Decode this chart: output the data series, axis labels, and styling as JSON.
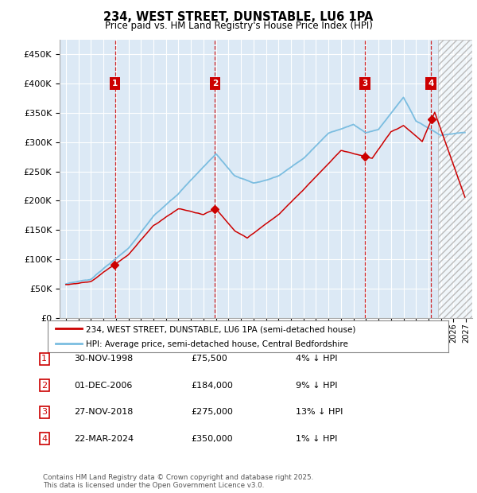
{
  "title": "234, WEST STREET, DUNSTABLE, LU6 1PA",
  "subtitle": "Price paid vs. HM Land Registry's House Price Index (HPI)",
  "hpi_label": "HPI: Average price, semi-detached house, Central Bedfordshire",
  "property_label": "234, WEST STREET, DUNSTABLE, LU6 1PA (semi-detached house)",
  "transactions": [
    {
      "num": 1,
      "date": "30-NOV-1998",
      "year": 1998.92,
      "price": 75500,
      "price_str": "£75,500",
      "hpi_diff": "4% ↓ HPI"
    },
    {
      "num": 2,
      "date": "01-DEC-2006",
      "year": 2006.92,
      "price": 184000,
      "price_str": "£184,000",
      "hpi_diff": "9% ↓ HPI"
    },
    {
      "num": 3,
      "date": "27-NOV-2018",
      "year": 2018.92,
      "price": 275000,
      "price_str": "£275,000",
      "hpi_diff": "13% ↓ HPI"
    },
    {
      "num": 4,
      "date": "22-MAR-2024",
      "year": 2024.21,
      "price": 350000,
      "price_str": "£350,000",
      "hpi_diff": "1% ↓ HPI"
    }
  ],
  "footer": "Contains HM Land Registry data © Crown copyright and database right 2025.\nThis data is licensed under the Open Government Licence v3.0.",
  "ylim": [
    0,
    475000
  ],
  "xlim": [
    1994.5,
    2027.5
  ],
  "yticks": [
    0,
    50000,
    100000,
    150000,
    200000,
    250000,
    300000,
    350000,
    400000,
    450000
  ],
  "ytick_labels": [
    "£0",
    "£50K",
    "£100K",
    "£150K",
    "£200K",
    "£250K",
    "£300K",
    "£350K",
    "£400K",
    "£450K"
  ],
  "bg_color": "#dce9f5",
  "hpi_line_color": "#7bbde0",
  "price_line_color": "#cc0000",
  "vline_color": "#cc0000",
  "grid_color": "#ffffff",
  "label_box_color": "#cc0000",
  "future_hatch_color": "#c8c8c8"
}
